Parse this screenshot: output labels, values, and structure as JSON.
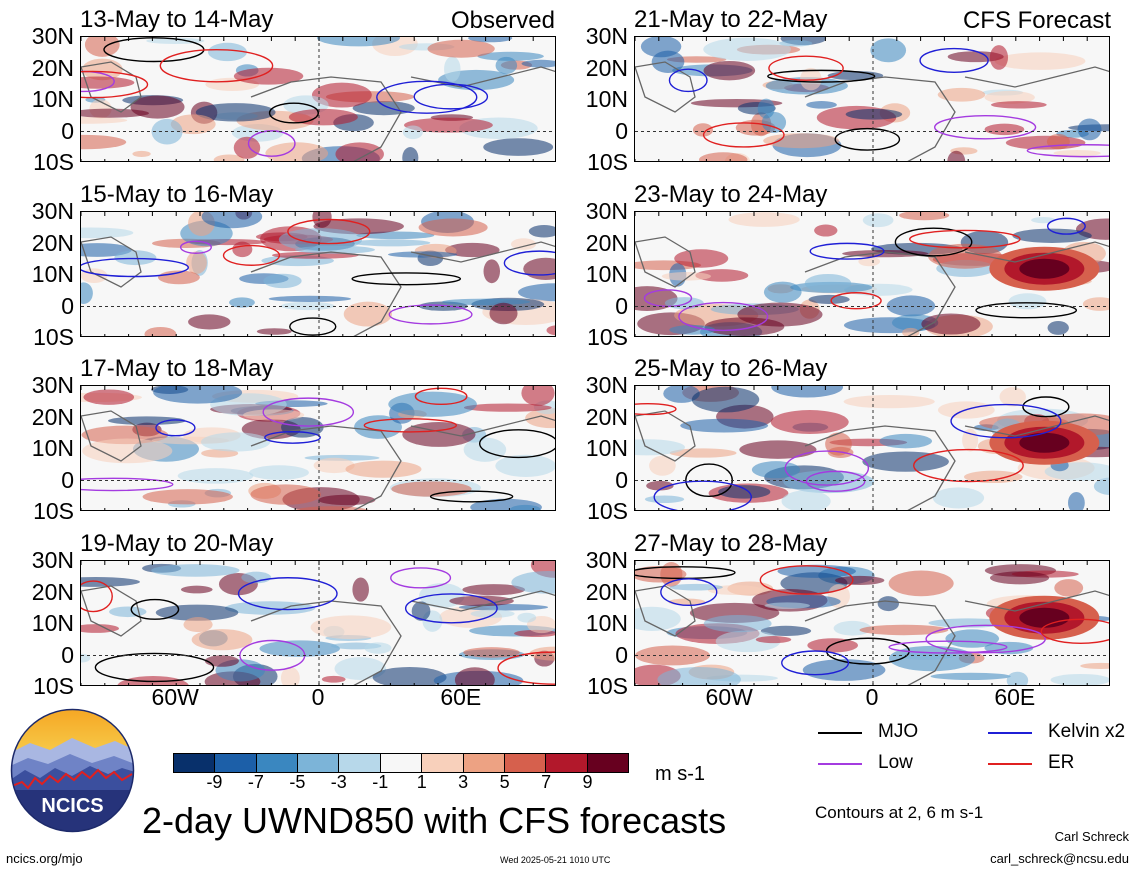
{
  "chart_data": {
    "type": "heatmap",
    "title": "2-day UWND850 with CFS forecasts",
    "units": "m s-1",
    "colorbar": {
      "ticks": [
        "-9",
        "-7",
        "-5",
        "-3",
        "-1",
        "1",
        "3",
        "5",
        "7",
        "9"
      ],
      "colors": [
        "#08306b",
        "#1c5fa8",
        "#3a87c0",
        "#7cb4d8",
        "#b7d8ea",
        "#f7f7f7",
        "#f8d0bb",
        "#eda283",
        "#d6604d",
        "#b2182b",
        "#67001f"
      ]
    },
    "latitude_ticks": [
      "30N",
      "20N",
      "10N",
      "0",
      "10S"
    ],
    "longitude_ticks": [
      "60W",
      "0",
      "60E"
    ],
    "columns": [
      {
        "label": "Observed",
        "panels": [
          "13-May to 14-May",
          "15-May to 16-May",
          "17-May to 18-May",
          "19-May to 20-May"
        ]
      },
      {
        "label": "CFS Forecast",
        "panels": [
          "21-May to 22-May",
          "23-May to 24-May",
          "25-May to 26-May",
          "27-May to 28-May"
        ]
      }
    ],
    "legend": [
      {
        "name": "MJO",
        "color": "#000000"
      },
      {
        "name": "Kelvin x2",
        "color": "#1f1fd6"
      },
      {
        "name": "Low",
        "color": "#a43be0"
      },
      {
        "name": "ER",
        "color": "#e02020"
      }
    ],
    "contour_note": "Contours at 2, 6 m s-1"
  },
  "logo": {
    "text": "NCICS"
  },
  "footer": {
    "site": "ncics.org/mjo",
    "timestamp": "Wed 2025-05-21 1010 UTC",
    "author": "Carl Schreck",
    "email": "carl_schreck@ncsu.edu"
  }
}
